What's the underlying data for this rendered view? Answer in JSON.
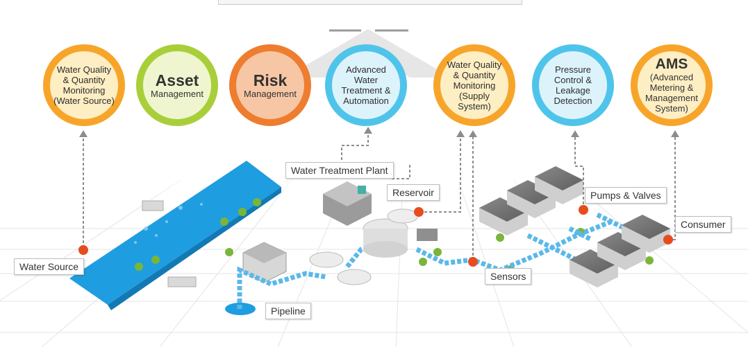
{
  "circles": [
    {
      "id": "wq-source",
      "text": "Water Quality & Quantity Monitoring (Water Source)"
    },
    {
      "id": "asset",
      "title": "Asset",
      "sub": "Management"
    },
    {
      "id": "risk",
      "title": "Risk",
      "sub": "Management"
    },
    {
      "id": "advanced",
      "text": "Advanced Water Treatment & Automation"
    },
    {
      "id": "wq-supply",
      "text": "Water Quality & Quantity Monitoring (Supply System)"
    },
    {
      "id": "pressure",
      "text": "Pressure Control & Leakage Detection"
    },
    {
      "id": "ams",
      "title": "AMS",
      "sub": "(Advanced Metering & Management System)"
    }
  ],
  "labels": {
    "water_source": "Water Source",
    "water_treatment_plant": "Water Treatment Plant",
    "reservoir": "Reservoir",
    "pipeline": "Pipeline",
    "sensors": "Sensors",
    "pumps_valves": "Pumps & Valves",
    "consumer": "Consumer"
  },
  "colors": {
    "orange": "#f7a52a",
    "green": "#a8cf3a",
    "red": "#ee7d2f",
    "blue": "#4fc4ea",
    "water": "#1e9ee0",
    "pipe": "#5ab8ea",
    "marker": "#e74c1e"
  }
}
